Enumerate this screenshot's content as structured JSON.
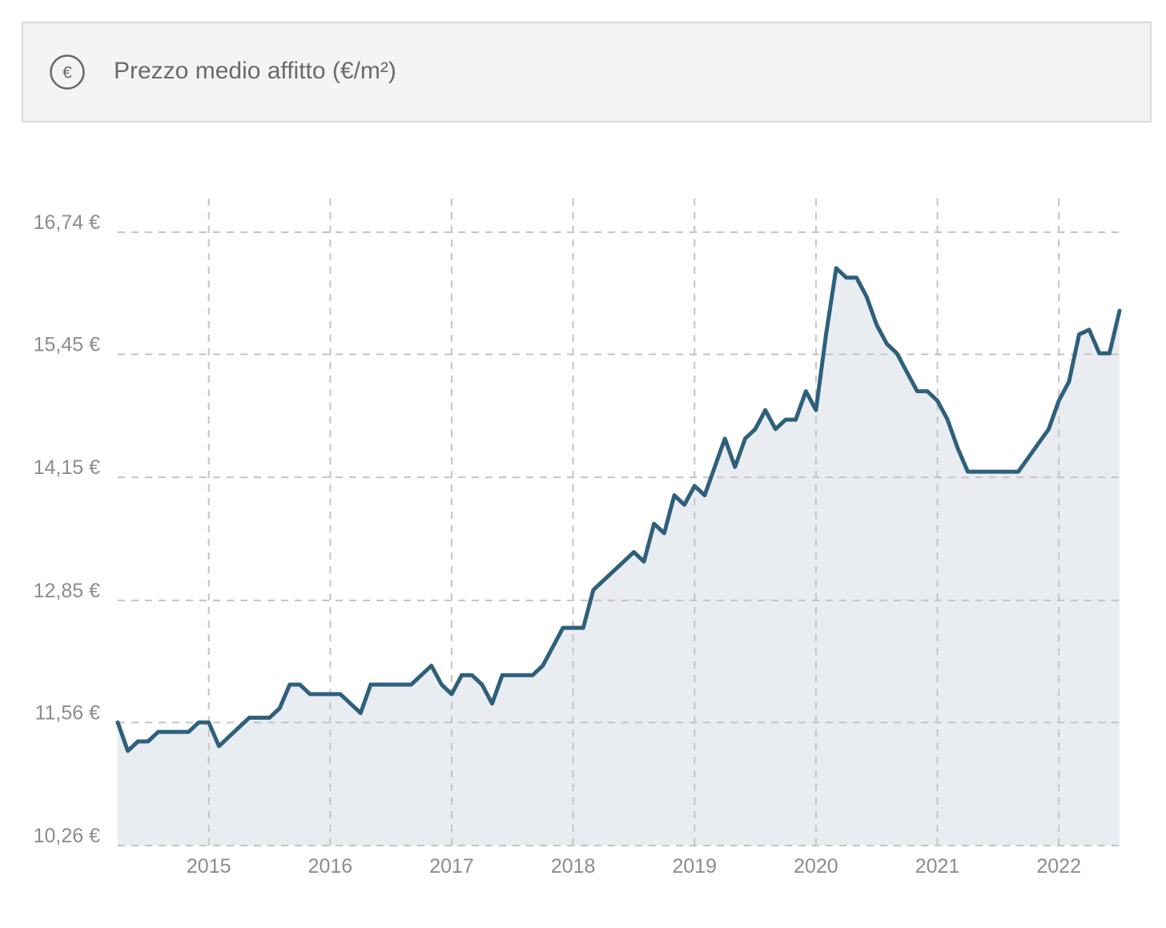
{
  "header": {
    "icon": "euro-circle-icon",
    "title": "Prezzo medio affitto (€/m²)"
  },
  "chart_data": {
    "type": "area",
    "title": "Prezzo medio affitto (€/m²)",
    "ylim": [
      10.26,
      16.74
    ],
    "yticks": [
      10.26,
      11.56,
      12.85,
      14.15,
      15.45,
      16.74
    ],
    "ytick_labels": [
      "10,26 €",
      "11,56 €",
      "12,85 €",
      "14,15 €",
      "15,45 €",
      "16,74 €"
    ],
    "xlim": [
      "2014-04",
      "2022-07"
    ],
    "xticks": [
      "2015",
      "2016",
      "2017",
      "2018",
      "2019",
      "2020",
      "2021",
      "2022"
    ],
    "grid": true,
    "line_color": "#2e607c",
    "fill_color": "#e9ecf1",
    "series": [
      {
        "x": [
          "2014-04",
          "2014-05",
          "2014-06",
          "2014-07",
          "2014-08",
          "2014-09",
          "2014-10",
          "2014-11",
          "2014-12",
          "2015-01",
          "2015-02",
          "2015-03",
          "2015-04",
          "2015-05",
          "2015-06",
          "2015-07",
          "2015-08",
          "2015-09",
          "2015-10",
          "2015-11",
          "2015-12",
          "2016-01",
          "2016-02",
          "2016-03",
          "2016-04",
          "2016-05",
          "2016-06",
          "2016-07",
          "2016-08",
          "2016-09",
          "2016-10",
          "2016-11",
          "2016-12",
          "2017-01",
          "2017-02",
          "2017-03",
          "2017-04",
          "2017-05",
          "2017-06",
          "2017-07",
          "2017-08",
          "2017-09",
          "2017-10",
          "2017-11",
          "2017-12",
          "2018-01",
          "2018-02",
          "2018-03",
          "2018-04",
          "2018-05",
          "2018-06",
          "2018-07",
          "2018-08",
          "2018-09",
          "2018-10",
          "2018-11",
          "2018-12",
          "2019-01",
          "2019-02",
          "2019-03",
          "2019-04",
          "2019-05",
          "2019-06",
          "2019-07",
          "2019-08",
          "2019-09",
          "2019-10",
          "2019-11",
          "2019-12",
          "2020-01",
          "2020-02",
          "2020-03",
          "2020-04",
          "2020-05",
          "2020-06",
          "2020-07",
          "2020-08",
          "2020-09",
          "2020-10",
          "2020-11",
          "2020-12",
          "2021-01",
          "2021-02",
          "2021-03",
          "2021-04",
          "2021-05",
          "2021-06",
          "2021-07",
          "2021-08",
          "2021-09",
          "2021-10",
          "2021-11",
          "2021-12",
          "2022-01",
          "2022-02",
          "2022-03",
          "2022-04",
          "2022-05",
          "2022-06",
          "2022-07"
        ],
        "values": [
          11.56,
          11.26,
          11.36,
          11.36,
          11.46,
          11.46,
          11.46,
          11.46,
          11.56,
          11.56,
          11.31,
          11.41,
          11.51,
          11.61,
          11.61,
          11.61,
          11.71,
          11.96,
          11.96,
          11.86,
          11.86,
          11.86,
          11.86,
          11.76,
          11.66,
          11.96,
          11.96,
          11.96,
          11.96,
          11.96,
          12.06,
          12.16,
          11.96,
          11.86,
          12.06,
          12.06,
          11.96,
          11.76,
          12.06,
          12.06,
          12.06,
          12.06,
          12.16,
          12.36,
          12.56,
          12.56,
          12.56,
          12.96,
          13.06,
          13.16,
          13.26,
          13.36,
          13.26,
          13.66,
          13.56,
          13.96,
          13.86,
          14.06,
          13.96,
          14.26,
          14.56,
          14.26,
          14.56,
          14.66,
          14.86,
          14.66,
          14.76,
          14.76,
          15.06,
          14.86,
          15.66,
          16.36,
          16.26,
          16.26,
          16.06,
          15.76,
          15.56,
          15.46,
          15.26,
          15.06,
          15.06,
          14.96,
          14.76,
          14.46,
          14.21,
          14.21,
          14.21,
          14.21,
          14.21,
          14.21,
          14.36,
          14.51,
          14.66,
          14.96,
          15.16,
          15.66,
          15.71,
          15.46,
          15.46,
          15.91
        ]
      }
    ]
  }
}
